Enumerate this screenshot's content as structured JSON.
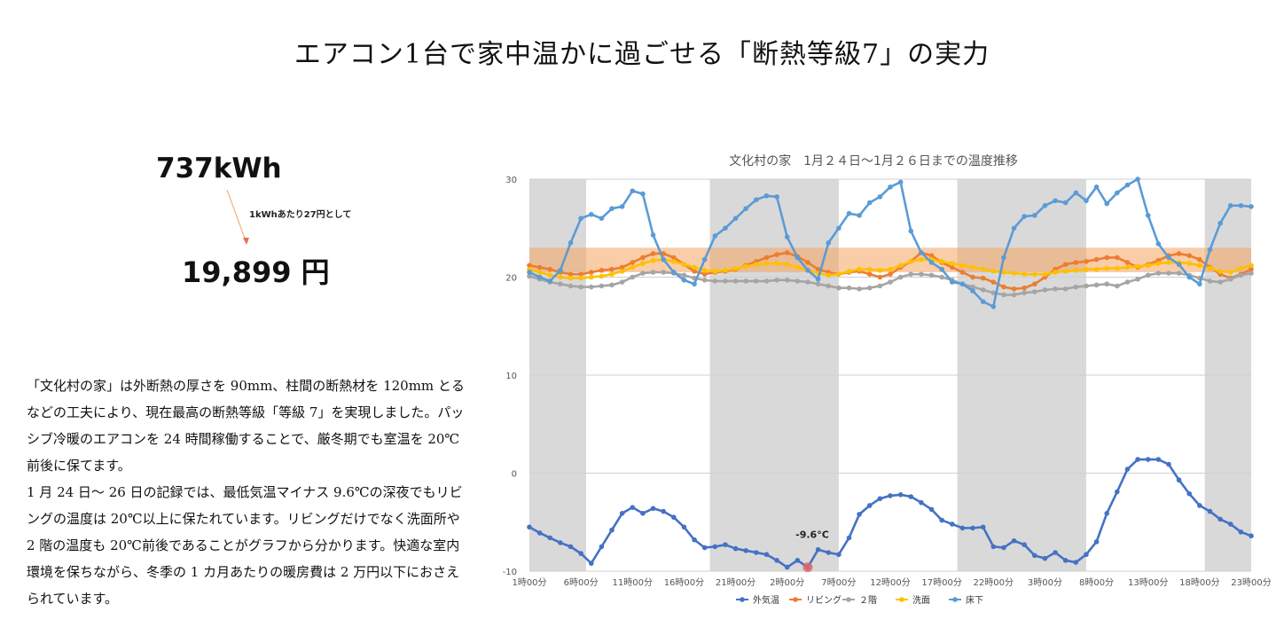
{
  "page": {
    "title": "エアコン1台で家中温かに過ごせる「断熱等級7」の実力",
    "energy": "737kWh",
    "rate_note": "1kWhあたり27円として",
    "cost": "19,899 円",
    "description": [
      "「文化村の家」は外断熱の厚さを 90mm、柱間の断熱材を 120mm とるなどの工夫により、現在最高の断熱等級「等級 7」を実現しました。パッシブ冷暖のエアコンを 24 時間稼働することで、厳冬期でも室温を 20℃前後に保てます。",
      "1 月 24 日〜 26 日の記録では、最低気温マイナス 9.6℃の深夜でもリビングの温度は 20℃以上に保たれています。リビングだけでなく洗面所や 2 階の温度も 20℃前後であることがグラフから分かります。快適な室内環境を保ちながら、冬季の 1 カ月あたりの暖房費は 2 万円以下におさえられています。"
    ]
  },
  "chart_data": {
    "type": "line",
    "title": "文化村の家　1月２４日〜1月２６日までの温度推移",
    "ylim": [
      -10,
      30
    ],
    "yticks": [
      -10,
      0,
      10,
      20,
      30
    ],
    "xlim": [
      1,
      71
    ],
    "x_tick_positions": [
      1,
      6,
      11,
      16,
      21,
      26,
      31,
      36,
      41,
      46,
      51,
      56,
      61,
      66,
      71
    ],
    "x_tick_labels": [
      "1時00分",
      "6時00分",
      "11時00分",
      "16時00分",
      "21時00分",
      "2時00分",
      "7時00分",
      "12時00分",
      "17時00分",
      "22時00分",
      "3時00分",
      "8時00分",
      "13時00分",
      "18時00分",
      "23時00分"
    ],
    "night_bands": [
      [
        1,
        6.5
      ],
      [
        18.5,
        31
      ],
      [
        42.5,
        55
      ],
      [
        66.5,
        71
      ]
    ],
    "comfort_band": [
      20.5,
      23
    ],
    "grid": true,
    "legend_position": "bottom",
    "x": [
      1,
      2,
      3,
      4,
      5,
      6,
      7,
      8,
      9,
      10,
      11,
      12,
      13,
      14,
      15,
      16,
      17,
      18,
      19,
      20,
      21,
      22,
      23,
      24,
      25,
      26,
      27,
      28,
      29,
      30,
      31,
      32,
      33,
      34,
      35,
      36,
      37,
      38,
      39,
      40,
      41,
      42,
      43,
      44,
      45,
      46,
      47,
      48,
      49,
      50,
      51,
      52,
      53,
      54,
      55,
      56,
      57,
      58,
      59,
      60,
      61,
      62,
      63,
      64,
      65,
      66,
      67,
      68,
      69,
      70,
      71
    ],
    "series": [
      {
        "name": "外気温",
        "color": "#4472c4",
        "values": [
          -5.5,
          -6.1,
          -6.6,
          -7.1,
          -7.5,
          -8.2,
          -9.2,
          -7.5,
          -5.8,
          -4.1,
          -3.5,
          -4.1,
          -3.6,
          -3.9,
          -4.5,
          -5.5,
          -6.8,
          -7.6,
          -7.5,
          -7.3,
          -7.7,
          -7.9,
          -8.1,
          -8.3,
          -8.9,
          -9.6,
          -8.9,
          -9.6,
          -7.8,
          -8.1,
          -8.3,
          -6.6,
          -4.2,
          -3.3,
          -2.6,
          -2.3,
          -2.2,
          -2.4,
          -3.0,
          -3.7,
          -4.8,
          -5.2,
          -5.6,
          -5.6,
          -5.5,
          -7.5,
          -7.6,
          -6.9,
          -7.3,
          -8.4,
          -8.7,
          -8.1,
          -8.9,
          -9.1,
          -8.3,
          -7.0,
          -4.1,
          -1.9,
          0.4,
          1.4,
          1.4,
          1.4,
          0.9,
          -0.7,
          -2.1,
          -3.3,
          -3.9,
          -4.7,
          -5.2,
          -6.0,
          -6.4
        ]
      },
      {
        "name": "リビング",
        "color": "#ed7d31",
        "values": [
          21.2,
          21.0,
          20.8,
          20.5,
          20.3,
          20.3,
          20.5,
          20.7,
          20.8,
          21.0,
          21.5,
          22.0,
          22.4,
          22.4,
          22.0,
          21.3,
          20.6,
          20.3,
          20.5,
          20.6,
          20.8,
          21.2,
          21.6,
          22.0,
          22.3,
          22.5,
          22.1,
          21.5,
          20.8,
          20.5,
          20.3,
          20.5,
          20.6,
          20.3,
          20.0,
          20.3,
          21.0,
          21.6,
          22.5,
          22.2,
          21.5,
          21.0,
          20.5,
          20.0,
          19.9,
          19.5,
          19.0,
          18.8,
          18.9,
          19.3,
          20.0,
          20.8,
          21.3,
          21.5,
          21.6,
          21.8,
          22.0,
          22.0,
          21.5,
          21.0,
          21.3,
          21.7,
          22.2,
          22.4,
          22.2,
          21.8,
          21.0,
          20.3,
          19.9,
          20.3,
          20.8
        ]
      },
      {
        "name": "２階",
        "color": "#a5a5a5",
        "values": [
          20.1,
          19.8,
          19.5,
          19.3,
          19.1,
          19.0,
          19.0,
          19.1,
          19.2,
          19.5,
          20.0,
          20.4,
          20.5,
          20.5,
          20.4,
          20.2,
          19.9,
          19.7,
          19.6,
          19.6,
          19.6,
          19.6,
          19.6,
          19.6,
          19.7,
          19.7,
          19.6,
          19.5,
          19.3,
          19.1,
          18.9,
          18.9,
          18.8,
          18.9,
          19.1,
          19.5,
          20.0,
          20.3,
          20.3,
          20.2,
          20.0,
          19.7,
          19.3,
          19.0,
          18.7,
          18.4,
          18.2,
          18.2,
          18.4,
          18.5,
          18.7,
          18.8,
          18.8,
          19.0,
          19.1,
          19.2,
          19.3,
          19.1,
          19.5,
          19.8,
          20.2,
          20.4,
          20.4,
          20.4,
          20.2,
          19.9,
          19.6,
          19.5,
          19.8,
          20.2,
          20.4
        ]
      },
      {
        "name": "洗面",
        "color": "#ffc000",
        "values": [
          20.8,
          20.5,
          20.2,
          20.0,
          19.9,
          19.9,
          20.0,
          20.1,
          20.3,
          20.6,
          21.0,
          21.4,
          21.7,
          21.8,
          21.6,
          21.3,
          21.0,
          20.7,
          20.6,
          20.7,
          20.9,
          21.1,
          21.3,
          21.4,
          21.4,
          21.3,
          21.0,
          20.7,
          20.4,
          20.2,
          20.3,
          20.6,
          20.8,
          20.8,
          20.7,
          20.8,
          21.2,
          21.6,
          21.8,
          21.8,
          21.6,
          21.4,
          21.2,
          21.0,
          20.8,
          20.6,
          20.5,
          20.4,
          20.3,
          20.3,
          20.3,
          20.5,
          20.6,
          20.7,
          20.8,
          20.8,
          20.9,
          20.9,
          21.0,
          21.1,
          21.2,
          21.4,
          21.5,
          21.5,
          21.4,
          21.2,
          20.9,
          20.6,
          20.5,
          20.9,
          21.2
        ]
      },
      {
        "name": "床下",
        "color": "#5b9bd5",
        "values": [
          20.5,
          20.0,
          19.6,
          20.7,
          23.5,
          26.0,
          26.4,
          26.0,
          27.0,
          27.2,
          28.8,
          28.5,
          24.3,
          21.8,
          20.5,
          19.7,
          19.3,
          21.8,
          24.2,
          25.0,
          26.0,
          27.0,
          27.9,
          28.3,
          28.2,
          24.1,
          22.0,
          20.7,
          19.8,
          23.5,
          25.0,
          26.5,
          26.3,
          27.6,
          28.2,
          29.2,
          29.7,
          24.7,
          22.5,
          21.5,
          20.8,
          19.5,
          19.3,
          18.6,
          17.5,
          17.0,
          22.0,
          25.0,
          26.2,
          26.3,
          27.3,
          27.8,
          27.6,
          28.6,
          27.8,
          29.2,
          27.5,
          28.6,
          29.4,
          30.0,
          26.3,
          23.4,
          22.0,
          21.3,
          20.0,
          19.3,
          22.8,
          25.5,
          27.3,
          27.3,
          27.2
        ]
      }
    ],
    "annotation": {
      "text": "-9.6°C",
      "x": 28,
      "y": -9.6
    }
  }
}
